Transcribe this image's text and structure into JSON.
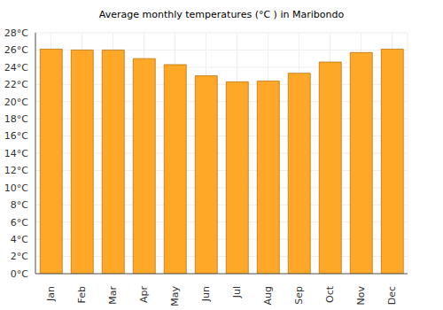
{
  "chart_data": {
    "type": "bar",
    "title": "Average monthly temperatures (°C ) in Maribondo",
    "categories": [
      "Jan",
      "Feb",
      "Mar",
      "Apr",
      "May",
      "Jun",
      "Jul",
      "Aug",
      "Sep",
      "Oct",
      "Nov",
      "Dec"
    ],
    "values": [
      26.1,
      26.0,
      26.0,
      25.0,
      24.3,
      23.0,
      22.3,
      22.4,
      23.3,
      24.6,
      25.7,
      26.1
    ],
    "color": "#ffa726",
    "ylim": [
      0,
      28
    ],
    "yticks": [
      {
        "value": 0,
        "label": "0°C"
      },
      {
        "value": 2,
        "label": "2°C"
      },
      {
        "value": 4,
        "label": "4°C"
      },
      {
        "value": 6,
        "label": "6°C"
      },
      {
        "value": 8,
        "label": "8°C"
      },
      {
        "value": 10,
        "label": "10°C"
      },
      {
        "value": 12,
        "label": "12°C"
      },
      {
        "value": 14,
        "label": "14°C"
      },
      {
        "value": 16,
        "label": "16°C"
      },
      {
        "value": 18,
        "label": "18°C"
      },
      {
        "value": 20,
        "label": "20°C"
      },
      {
        "value": 22,
        "label": "22°C"
      },
      {
        "value": 24,
        "label": "24°C"
      },
      {
        "value": 26,
        "label": "26°C"
      },
      {
        "value": 28,
        "label": "28°C"
      }
    ],
    "grid": true
  }
}
